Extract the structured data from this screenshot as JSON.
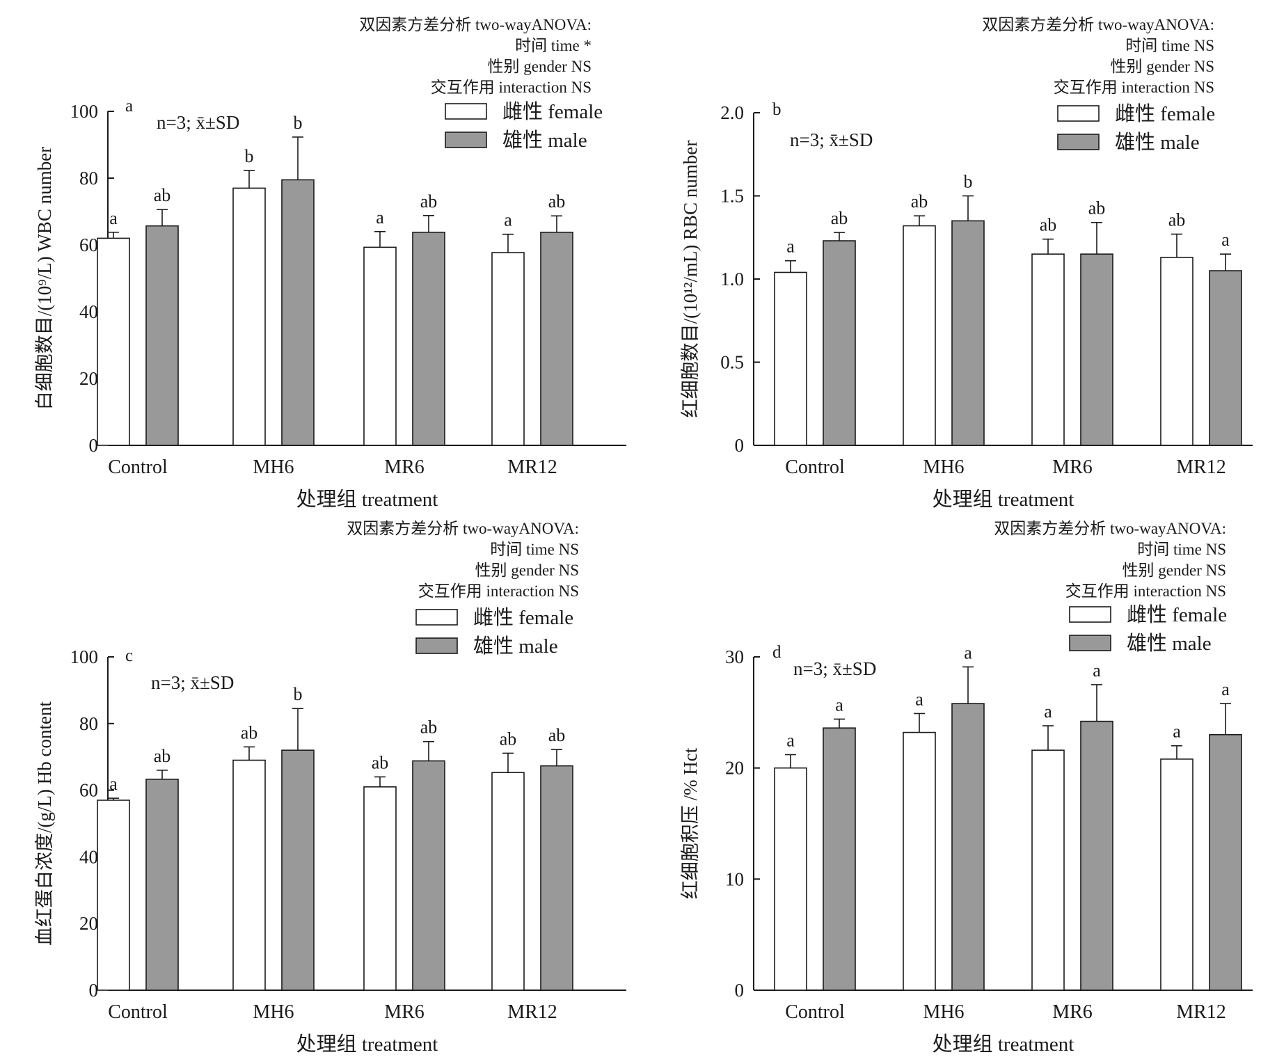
{
  "chart_data": [
    {
      "type": "bar",
      "panel_letter": "a",
      "anova": [
        "双因素方差分析 two-wayANOVA:",
        "时间 time *",
        "性别 gender NS",
        "交互作用 interaction NS"
      ],
      "stats_note": "n=3; x̄±SD",
      "xlabel": "处理组 treatment",
      "ylabel": "白细胞数目/(10⁹/L) WBC number",
      "ylim": [
        0,
        100
      ],
      "yticks": [
        "0",
        "20",
        "40",
        "60",
        "80",
        "100"
      ],
      "categories": [
        "Control",
        "MH6",
        "MR6",
        "MR12"
      ],
      "series": [
        {
          "name": "雌性 female",
          "values": [
            62,
            77,
            59.3,
            57.7
          ],
          "errors": [
            1.8,
            5.3,
            4.7,
            5.5
          ],
          "labels": [
            "a",
            "b",
            "a",
            "a"
          ]
        },
        {
          "name": "雄性 male",
          "values": [
            65.7,
            79.5,
            63.8,
            63.8
          ],
          "errors": [
            4.9,
            12.8,
            5,
            4.9
          ],
          "labels": [
            "ab",
            "b",
            "ab",
            "ab"
          ]
        }
      ]
    },
    {
      "type": "bar",
      "panel_letter": "b",
      "anova": [
        "双因素方差分析 two-wayANOVA:",
        "时间 time NS",
        "性别 gender NS",
        "交互作用 interaction NS"
      ],
      "stats_note": "n=3; x̄±SD",
      "xlabel": "处理组 treatment",
      "ylabel": "红细胞数目/(10¹²/mL) RBC number",
      "ylim": [
        0,
        2.0
      ],
      "yticks": [
        "0",
        "0.5",
        "1.0",
        "1.5",
        "2.0"
      ],
      "categories": [
        "Control",
        "MH6",
        "MR6",
        "MR12"
      ],
      "series": [
        {
          "name": "雌性 female",
          "values": [
            1.04,
            1.32,
            1.15,
            1.13
          ],
          "errors": [
            0.07,
            0.06,
            0.09,
            0.14
          ],
          "labels": [
            "a",
            "ab",
            "ab",
            "ab"
          ]
        },
        {
          "name": "雄性 male",
          "values": [
            1.23,
            1.35,
            1.15,
            1.05
          ],
          "errors": [
            0.05,
            0.15,
            0.19,
            0.1
          ],
          "labels": [
            "ab",
            "b",
            "ab",
            "a"
          ]
        }
      ]
    },
    {
      "type": "bar",
      "panel_letter": "c",
      "anova": [
        "双因素方差分析 two-wayANOVA:",
        "时间 time NS",
        "性别 gender NS",
        "交互作用 interaction NS"
      ],
      "stats_note": "n=3; x̄±SD",
      "xlabel": "处理组 treatment",
      "ylabel": "血红蛋白浓度/(g/L) Hb content",
      "ylim": [
        0,
        100
      ],
      "yticks": [
        "0",
        "20",
        "40",
        "60",
        "80",
        "100"
      ],
      "categories": [
        "Control",
        "MH6",
        "MR6",
        "MR12"
      ],
      "series": [
        {
          "name": "雌性 female",
          "values": [
            57,
            69,
            61,
            65.3
          ],
          "errors": [
            0.6,
            4,
            3,
            5.8
          ],
          "labels": [
            "a",
            "ab",
            "ab",
            "ab"
          ]
        },
        {
          "name": "雄性 male",
          "values": [
            63.3,
            72,
            68.8,
            67.3
          ],
          "errors": [
            2.7,
            12.5,
            5.8,
            4.9
          ],
          "labels": [
            "ab",
            "b",
            "ab",
            "ab"
          ]
        }
      ]
    },
    {
      "type": "bar",
      "panel_letter": "d",
      "anova": [
        "双因素方差分析 two-wayANOVA:",
        "时间 time NS",
        "性别 gender NS",
        "交互作用 interaction NS"
      ],
      "stats_note": "n=3; x̄±SD",
      "xlabel": "处理组 treatment",
      "ylabel": "红细胞积压 /% Hct",
      "ylim": [
        0,
        30
      ],
      "yticks": [
        "0",
        "10",
        "20",
        "30"
      ],
      "categories": [
        "Control",
        "MH6",
        "MR6",
        "MR12"
      ],
      "series": [
        {
          "name": "雌性 female",
          "values": [
            20,
            23.2,
            21.6,
            20.8
          ],
          "errors": [
            1.2,
            1.7,
            2.2,
            1.2
          ],
          "labels": [
            "a",
            "a",
            "a",
            "a"
          ]
        },
        {
          "name": "雄性 male",
          "values": [
            23.6,
            25.8,
            24.2,
            23
          ],
          "errors": [
            0.8,
            3.3,
            3.3,
            2.8
          ],
          "labels": [
            "a",
            "a",
            "a",
            "a"
          ]
        }
      ]
    }
  ],
  "colors": {
    "female_fill": "#ffffff",
    "male_fill": "#999999",
    "stroke": "#1a1a1a"
  }
}
